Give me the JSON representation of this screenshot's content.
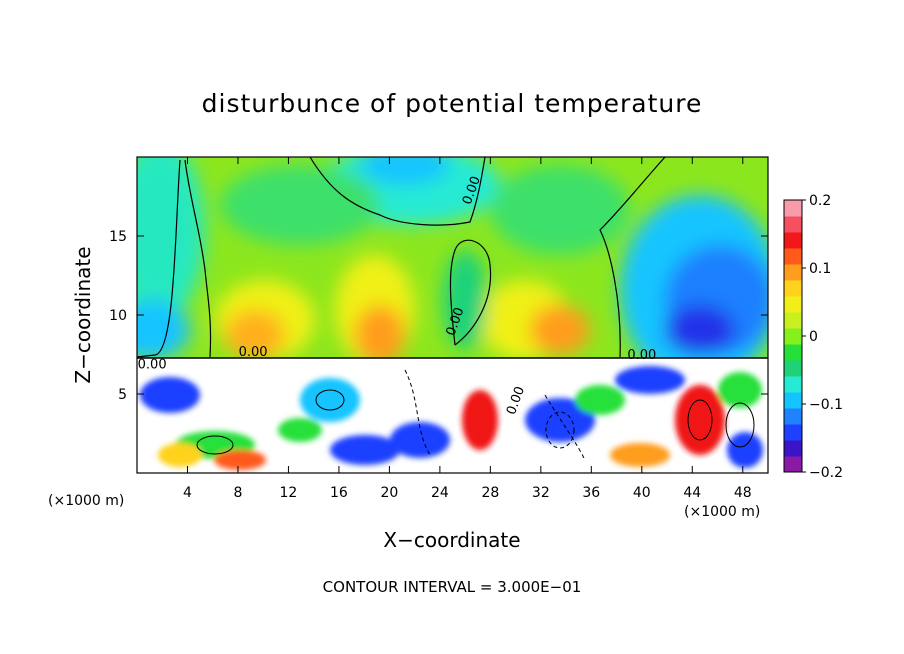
{
  "chart_data": {
    "type": "heatmap",
    "title": "disturbunce of potential temperature",
    "xlabel": "X−coordinate",
    "ylabel": "Z−coordinate",
    "x_unit_left": "(×1000 m)",
    "x_unit_right": "(×1000 m)",
    "xlim": [
      0,
      50
    ],
    "ylim": [
      0,
      20
    ],
    "x_ticks": [
      4,
      8,
      12,
      16,
      20,
      24,
      28,
      32,
      36,
      40,
      44,
      48
    ],
    "y_ticks": [
      5,
      10,
      15
    ],
    "colorbar": {
      "range": [
        -0.2,
        0.2
      ],
      "ticks": [
        {
          "value": 0.2,
          "label": "0.2"
        },
        {
          "value": 0.1,
          "label": "0.1"
        },
        {
          "value": 0,
          "label": "0"
        },
        {
          "value": -0.1,
          "label": "−0.1"
        },
        {
          "value": -0.2,
          "label": "−0.2"
        }
      ],
      "colors": [
        "#8a1aa6",
        "#3b14c8",
        "#1e40ff",
        "#1f82ff",
        "#12c4ff",
        "#26ead4",
        "#1fd27a",
        "#26e03a",
        "#86f01c",
        "#c8f01e",
        "#f0f018",
        "#ffd21e",
        "#ff9d1e",
        "#ff5a1a",
        "#f01818",
        "#f54f60",
        "#fa9bab"
      ]
    },
    "contour_labels": [
      {
        "text": "0.00",
        "x": 1.2,
        "y": 6.6
      },
      {
        "text": "0.00",
        "x": 9.2,
        "y": 7.4
      },
      {
        "text": "0.00",
        "x": 26.8,
        "y": 17.8
      },
      {
        "text": "0.00",
        "x": 25.5,
        "y": 9.5
      },
      {
        "text": "0.00",
        "x": 30.3,
        "y": 4.5
      },
      {
        "text": "0.00",
        "x": 40.0,
        "y": 7.2
      }
    ],
    "footer": "CONTOUR INTERVAL = 3.000E−01"
  }
}
